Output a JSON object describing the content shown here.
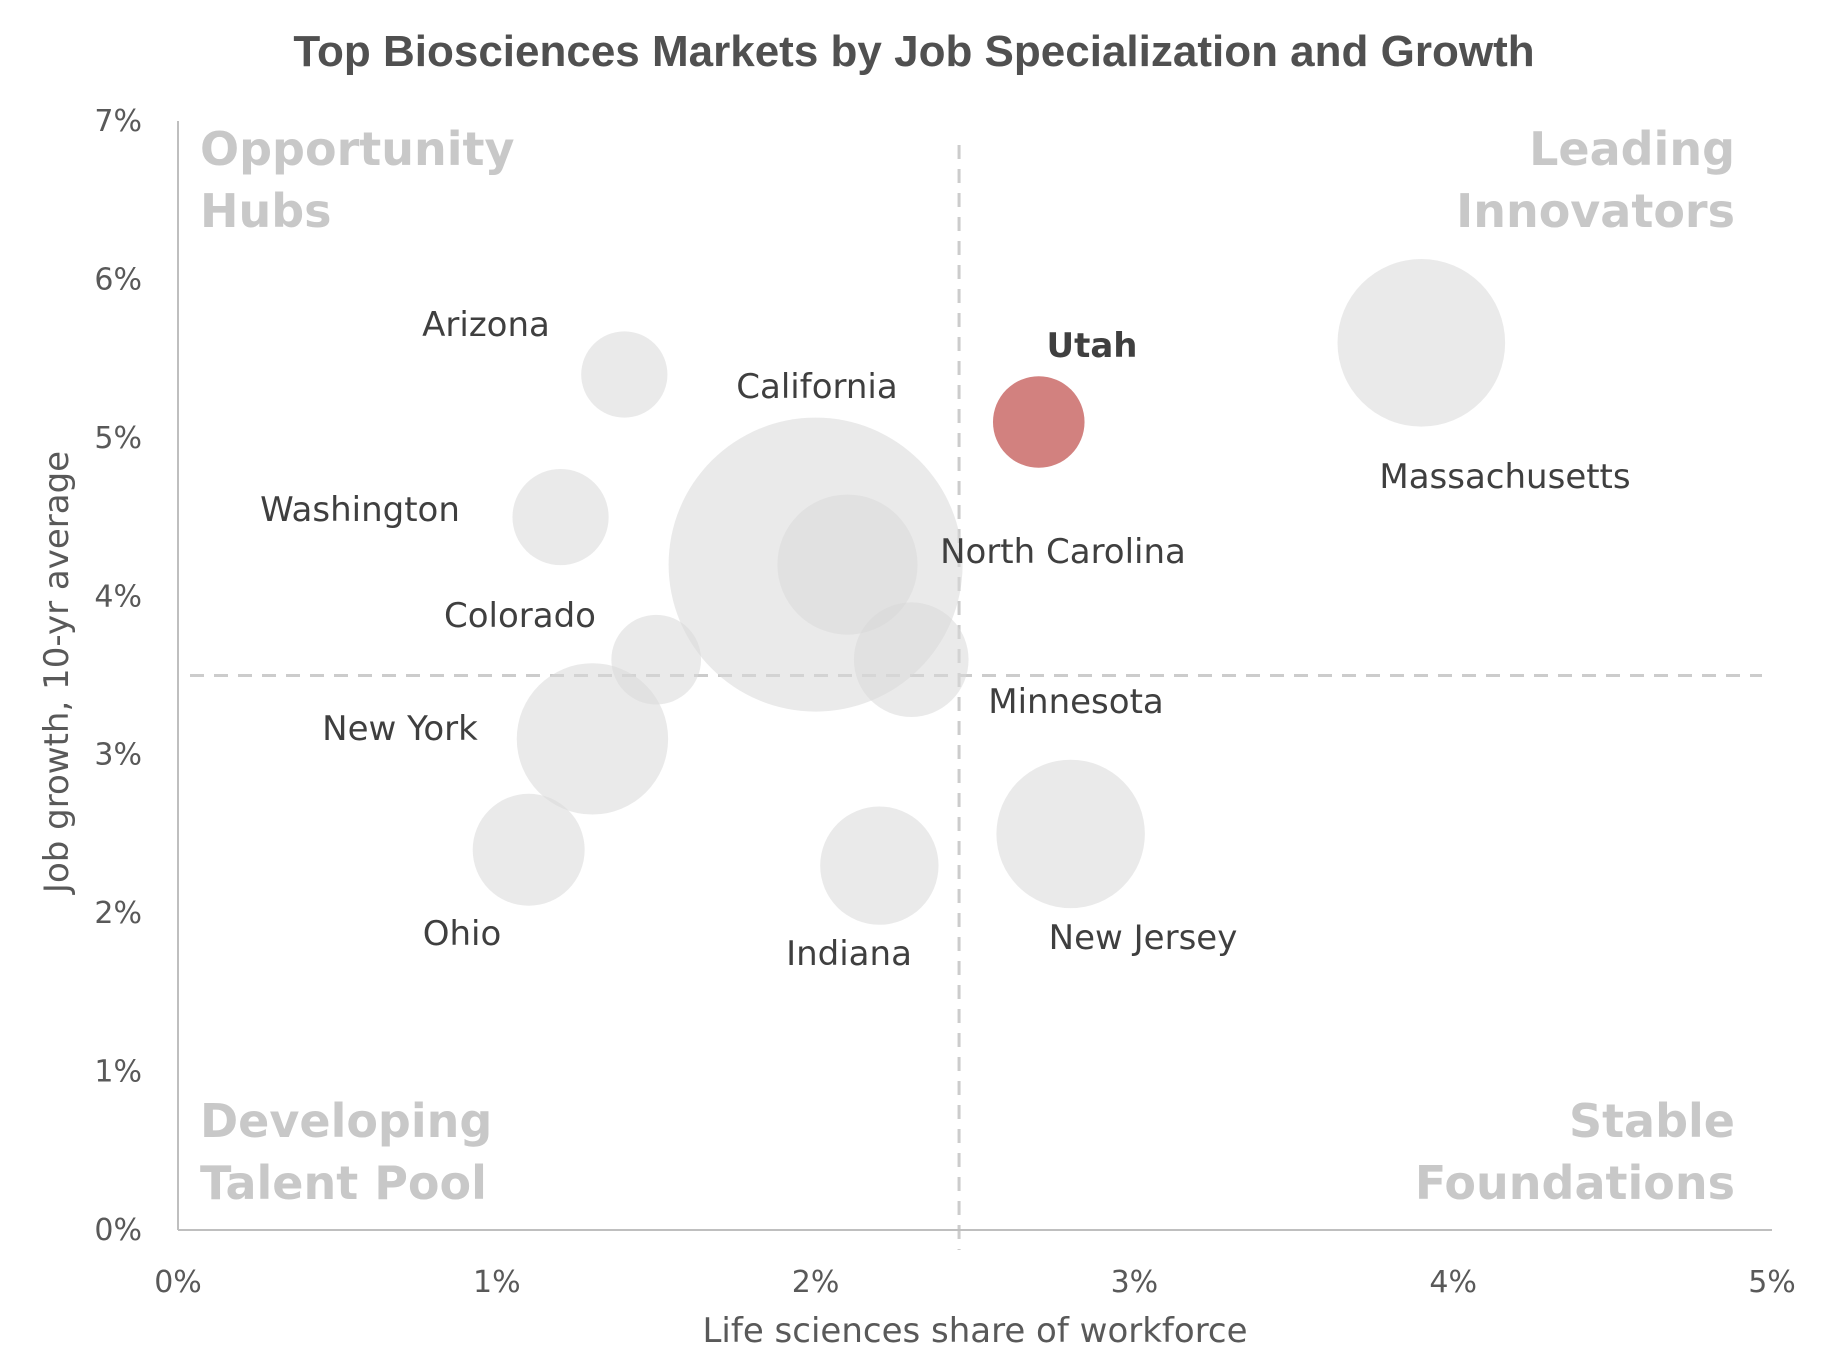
{
  "chart_data": {
    "type": "scatter",
    "subtype": "bubble",
    "title": "Top Biosciences Markets by Job Specialization and Growth",
    "xlabel": "Life sciences share of workforce",
    "ylabel": "Job growth, 10-yr average",
    "xlim": [
      0,
      5
    ],
    "ylim": [
      0,
      7
    ],
    "x_ticks": [
      {
        "value": 0,
        "label": "0%"
      },
      {
        "value": 1,
        "label": "1%"
      },
      {
        "value": 2,
        "label": "2%"
      },
      {
        "value": 3,
        "label": "3%"
      },
      {
        "value": 4,
        "label": "4%"
      },
      {
        "value": 5,
        "label": "5%"
      }
    ],
    "y_ticks": [
      {
        "value": 0,
        "label": "0%"
      },
      {
        "value": 1,
        "label": "1%"
      },
      {
        "value": 2,
        "label": "2%"
      },
      {
        "value": 3,
        "label": "3%"
      },
      {
        "value": 4,
        "label": "4%"
      },
      {
        "value": 5,
        "label": "5%"
      },
      {
        "value": 6,
        "label": "6%"
      },
      {
        "value": 7,
        "label": "7%"
      }
    ],
    "reference_lines": {
      "x": 2.45,
      "y": 3.5
    },
    "grid": false,
    "legend": "none",
    "quadrants": [
      {
        "position": "top-left",
        "lines": [
          "Opportunity",
          "Hubs"
        ]
      },
      {
        "position": "top-right",
        "lines": [
          "Leading",
          "Innovators"
        ]
      },
      {
        "position": "bottom-left",
        "lines": [
          "Developing",
          "Talent Pool"
        ]
      },
      {
        "position": "bottom-right",
        "lines": [
          "Stable",
          "Foundations"
        ]
      }
    ],
    "points": [
      {
        "name": "California",
        "x": 2.0,
        "y": 4.2,
        "size": 100,
        "highlight": false
      },
      {
        "name": "Arizona",
        "x": 1.4,
        "y": 5.4,
        "size": 8.6,
        "highlight": false
      },
      {
        "name": "Washington",
        "x": 1.2,
        "y": 4.5,
        "size": 10.7,
        "highlight": false
      },
      {
        "name": "Colorado",
        "x": 1.5,
        "y": 3.6,
        "size": 9.3,
        "highlight": false
      },
      {
        "name": "New York",
        "x": 1.3,
        "y": 3.1,
        "size": 26.5,
        "highlight": false
      },
      {
        "name": "Ohio",
        "x": 1.1,
        "y": 2.4,
        "size": 14.5,
        "highlight": false
      },
      {
        "name": "Indiana",
        "x": 2.2,
        "y": 2.3,
        "size": 16.2,
        "highlight": false
      },
      {
        "name": "North Carolina",
        "x": 2.1,
        "y": 4.2,
        "size": 22.7,
        "highlight": false
      },
      {
        "name": "Minnesota",
        "x": 2.3,
        "y": 3.6,
        "size": 15.2,
        "highlight": false
      },
      {
        "name": "New Jersey",
        "x": 2.8,
        "y": 2.5,
        "size": 25.5,
        "highlight": false
      },
      {
        "name": "Utah",
        "x": 2.7,
        "y": 5.1,
        "size": 9.7,
        "highlight": true
      },
      {
        "name": "Massachusetts",
        "x": 3.9,
        "y": 5.6,
        "size": 32.5,
        "highlight": false
      }
    ]
  },
  "colors": {
    "bubble": "#d9d9d9",
    "highlight": "#c0504d",
    "highlight_label": "#b22222",
    "axis": "#bfbfbf",
    "reference_line": "#cccccc"
  }
}
